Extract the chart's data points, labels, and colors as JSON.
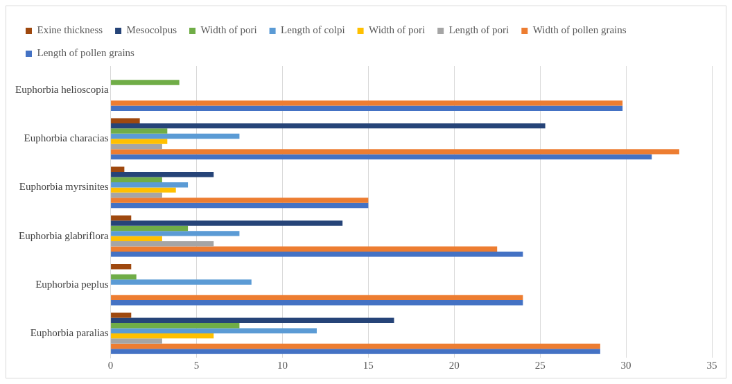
{
  "chart_data": {
    "type": "bar",
    "orientation": "horizontal",
    "categories": [
      "Euphorbia helioscopia",
      "Euphorbia characias",
      "Euphorbia myrsinites",
      "Euphorbia glabriflora",
      "Euphorbia peplus",
      "Euphorbia paralias"
    ],
    "series": [
      {
        "name": "Exine thickness",
        "color": "#9e480e",
        "values": [
          null,
          1.7,
          0.8,
          1.2,
          1.2,
          1.2
        ]
      },
      {
        "name": "Mesocolpus",
        "color": "#264478",
        "values": [
          null,
          25.3,
          6,
          13.5,
          null,
          16.5
        ]
      },
      {
        "name": "Width of pori",
        "color": "#70ad47",
        "values": [
          4,
          3.3,
          3,
          4.5,
          1.5,
          7.5
        ]
      },
      {
        "name": "Length of colpi",
        "color": "#5b9bd5",
        "values": [
          null,
          7.5,
          4.5,
          7.5,
          8.2,
          12
        ]
      },
      {
        "name": "Width of pori",
        "color": "#ffc000",
        "values": [
          null,
          3.3,
          3.8,
          3,
          null,
          6
        ]
      },
      {
        "name": "Length of pori",
        "color": "#a5a5a5",
        "values": [
          null,
          3,
          3,
          6,
          null,
          3
        ]
      },
      {
        "name": "Width of pollen grains",
        "color": "#ed7d31",
        "values": [
          29.8,
          33.1,
          15,
          22.5,
          24,
          28.5
        ]
      },
      {
        "name": "Length of pollen grains",
        "color": "#4472c4",
        "values": [
          29.8,
          31.5,
          15,
          24,
          24,
          28.5
        ]
      }
    ],
    "xlim": [
      0,
      35
    ],
    "xticks": [
      0,
      5,
      10,
      15,
      20,
      25,
      30,
      35
    ],
    "grid": "x",
    "legend": "top"
  }
}
